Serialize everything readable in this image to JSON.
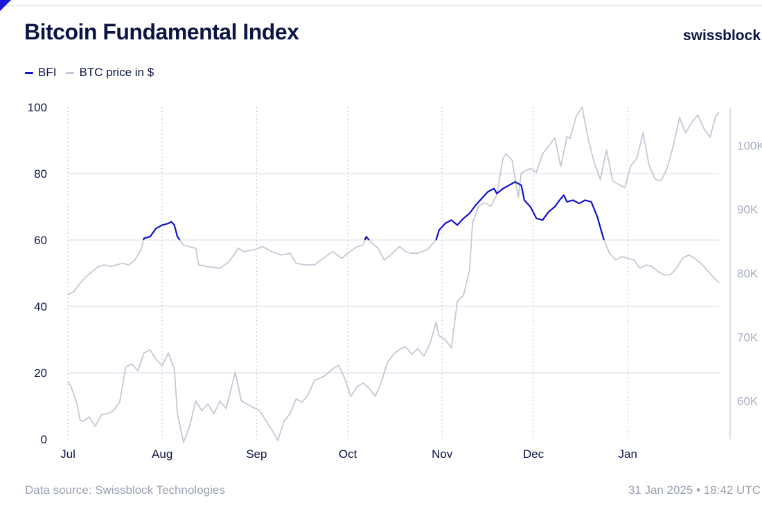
{
  "header": {
    "title": "Bitcoin Fundamental Index",
    "brand": "swissblock"
  },
  "footer": {
    "source": "Data source: Swissblock Technologies",
    "timestamp": "31 Jan 2025 • 18:42 UTC"
  },
  "chart_data": {
    "type": "line",
    "legend_position": "top-left",
    "grid": true,
    "x_tick_labels": [
      "Jul",
      "Aug",
      "Sep",
      "Oct",
      "Nov",
      "Dec",
      "Jan"
    ],
    "x_tick_dates": [
      "2024-07-01",
      "2024-08-01",
      "2024-09-01",
      "2024-10-01",
      "2024-11-01",
      "2024-12-01",
      "2025-01-01"
    ],
    "xlim": [
      "2024-07-01",
      "2025-01-31"
    ],
    "y_left": {
      "lim": [
        0,
        100
      ],
      "ticks": [
        0,
        20,
        40,
        60,
        80,
        100
      ]
    },
    "y_right": {
      "lim": [
        54000,
        106000
      ],
      "ticks": [
        60000,
        70000,
        80000,
        90000,
        100000
      ],
      "tick_labels": [
        "60K",
        "70K",
        "80K",
        "90K",
        "100K"
      ]
    },
    "colors": {
      "bfi": "#1010c8",
      "bfi_low": "#c4c8d6",
      "btc": "#c4c8d6",
      "grid": "#d6d9e6",
      "axis_text": "#0b1442",
      "right_axis_text": "#a6acc2"
    },
    "series": [
      {
        "name": "BFI",
        "axis": "left",
        "highlight_above": 60,
        "points": [
          [
            "2024-07-01",
            43.5
          ],
          [
            "2024-07-03",
            44.5
          ],
          [
            "2024-07-05",
            47
          ],
          [
            "2024-07-07",
            49
          ],
          [
            "2024-07-09",
            50.5
          ],
          [
            "2024-07-11",
            52
          ],
          [
            "2024-07-13",
            52.5
          ],
          [
            "2024-07-15",
            52
          ],
          [
            "2024-07-17",
            52.5
          ],
          [
            "2024-07-19",
            53
          ],
          [
            "2024-07-21",
            52.5
          ],
          [
            "2024-07-23",
            54
          ],
          [
            "2024-07-25",
            57
          ],
          [
            "2024-07-26",
            60.5
          ],
          [
            "2024-07-28",
            61
          ],
          [
            "2024-07-30",
            63.5
          ],
          [
            "2024-08-01",
            64.5
          ],
          [
            "2024-08-03",
            65
          ],
          [
            "2024-08-04",
            65.5
          ],
          [
            "2024-08-05",
            64.5
          ],
          [
            "2024-08-06",
            61
          ],
          [
            "2024-08-08",
            58.5
          ],
          [
            "2024-08-12",
            57.5
          ],
          [
            "2024-08-13",
            52.5
          ],
          [
            "2024-08-16",
            52
          ],
          [
            "2024-08-20",
            51.5
          ],
          [
            "2024-08-23",
            53.5
          ],
          [
            "2024-08-26",
            57.5
          ],
          [
            "2024-08-28",
            56.5
          ],
          [
            "2024-08-31",
            57
          ],
          [
            "2024-09-03",
            58
          ],
          [
            "2024-09-06",
            56.5
          ],
          [
            "2024-09-09",
            55.5
          ],
          [
            "2024-09-12",
            56
          ],
          [
            "2024-09-14",
            53
          ],
          [
            "2024-09-17",
            52.5
          ],
          [
            "2024-09-20",
            52.5
          ],
          [
            "2024-09-23",
            54.5
          ],
          [
            "2024-09-26",
            56.5
          ],
          [
            "2024-09-29",
            54.5
          ],
          [
            "2024-10-01",
            56
          ],
          [
            "2024-10-04",
            58
          ],
          [
            "2024-10-06",
            58.5
          ],
          [
            "2024-10-07",
            61
          ],
          [
            "2024-10-09",
            59
          ],
          [
            "2024-10-11",
            57.5
          ],
          [
            "2024-10-13",
            54
          ],
          [
            "2024-10-15",
            55.5
          ],
          [
            "2024-10-18",
            58
          ],
          [
            "2024-10-20",
            56.5
          ],
          [
            "2024-10-22",
            56
          ],
          [
            "2024-10-24",
            56
          ],
          [
            "2024-10-27",
            57
          ],
          [
            "2024-10-30",
            60
          ],
          [
            "2024-10-31",
            63
          ],
          [
            "2024-11-02",
            65
          ],
          [
            "2024-11-04",
            66
          ],
          [
            "2024-11-06",
            64.5
          ],
          [
            "2024-11-08",
            66.5
          ],
          [
            "2024-11-10",
            68
          ],
          [
            "2024-11-12",
            70.5
          ],
          [
            "2024-11-14",
            72.5
          ],
          [
            "2024-11-16",
            74.5
          ],
          [
            "2024-11-18",
            75.5
          ],
          [
            "2024-11-19",
            74
          ],
          [
            "2024-11-21",
            75.5
          ],
          [
            "2024-11-23",
            76.5
          ],
          [
            "2024-11-25",
            77.5
          ],
          [
            "2024-11-27",
            76.5
          ],
          [
            "2024-11-28",
            72
          ],
          [
            "2024-11-30",
            70
          ],
          [
            "2024-12-02",
            66.5
          ],
          [
            "2024-12-04",
            66
          ],
          [
            "2024-12-06",
            68.5
          ],
          [
            "2024-12-08",
            70
          ],
          [
            "2024-12-10",
            72.5
          ],
          [
            "2024-12-11",
            73.5
          ],
          [
            "2024-12-12",
            71.5
          ],
          [
            "2024-12-14",
            72
          ],
          [
            "2024-12-16",
            71
          ],
          [
            "2024-12-18",
            72
          ],
          [
            "2024-12-20",
            71.5
          ],
          [
            "2024-12-22",
            67
          ],
          [
            "2024-12-24",
            60.5
          ],
          [
            "2024-12-26",
            56
          ],
          [
            "2024-12-28",
            54
          ],
          [
            "2024-12-30",
            55
          ],
          [
            "2025-01-01",
            54.5
          ],
          [
            "2025-01-03",
            54
          ],
          [
            "2025-01-05",
            51.5
          ],
          [
            "2025-01-07",
            52.5
          ],
          [
            "2025-01-09",
            52
          ],
          [
            "2025-01-11",
            50.5
          ],
          [
            "2025-01-13",
            49.5
          ],
          [
            "2025-01-15",
            49.5
          ],
          [
            "2025-01-17",
            51.5
          ],
          [
            "2025-01-19",
            54.5
          ],
          [
            "2025-01-21",
            55.5
          ],
          [
            "2025-01-23",
            54.5
          ],
          [
            "2025-01-25",
            53
          ],
          [
            "2025-01-27",
            51
          ],
          [
            "2025-01-29",
            49
          ],
          [
            "2025-01-31",
            47
          ]
        ]
      },
      {
        "name": "BTC price in $",
        "axis": "right",
        "points": [
          [
            "2024-07-01",
            63000
          ],
          [
            "2024-07-02",
            62300
          ],
          [
            "2024-07-04",
            59500
          ],
          [
            "2024-07-05",
            57000
          ],
          [
            "2024-07-06",
            56800
          ],
          [
            "2024-07-08",
            57500
          ],
          [
            "2024-07-10",
            56000
          ],
          [
            "2024-07-12",
            57800
          ],
          [
            "2024-07-14",
            58000
          ],
          [
            "2024-07-16",
            58500
          ],
          [
            "2024-07-18",
            59800
          ],
          [
            "2024-07-20",
            65300
          ],
          [
            "2024-07-22",
            65800
          ],
          [
            "2024-07-24",
            64700
          ],
          [
            "2024-07-26",
            67500
          ],
          [
            "2024-07-28",
            68000
          ],
          [
            "2024-07-30",
            66500
          ],
          [
            "2024-08-01",
            65500
          ],
          [
            "2024-08-03",
            67500
          ],
          [
            "2024-08-05",
            65000
          ],
          [
            "2024-08-06",
            58000
          ],
          [
            "2024-08-08",
            53500
          ],
          [
            "2024-08-10",
            56000
          ],
          [
            "2024-08-12",
            60000
          ],
          [
            "2024-08-14",
            58500
          ],
          [
            "2024-08-16",
            59500
          ],
          [
            "2024-08-18",
            58000
          ],
          [
            "2024-08-20",
            60000
          ],
          [
            "2024-08-22",
            58800
          ],
          [
            "2024-08-25",
            64500
          ],
          [
            "2024-08-27",
            60000
          ],
          [
            "2024-08-30",
            59200
          ],
          [
            "2024-09-02",
            58500
          ],
          [
            "2024-09-04",
            57000
          ],
          [
            "2024-09-06",
            55500
          ],
          [
            "2024-09-08",
            53800
          ],
          [
            "2024-09-10",
            56800
          ],
          [
            "2024-09-12",
            58000
          ],
          [
            "2024-09-14",
            60300
          ],
          [
            "2024-09-16",
            59800
          ],
          [
            "2024-09-18",
            61000
          ],
          [
            "2024-09-20",
            63200
          ],
          [
            "2024-09-23",
            63800
          ],
          [
            "2024-09-26",
            65000
          ],
          [
            "2024-09-28",
            65600
          ],
          [
            "2024-09-30",
            63500
          ],
          [
            "2024-10-02",
            60700
          ],
          [
            "2024-10-04",
            62200
          ],
          [
            "2024-10-06",
            62800
          ],
          [
            "2024-10-08",
            62000
          ],
          [
            "2024-10-10",
            60700
          ],
          [
            "2024-10-12",
            62900
          ],
          [
            "2024-10-14",
            66000
          ],
          [
            "2024-10-16",
            67300
          ],
          [
            "2024-10-18",
            68100
          ],
          [
            "2024-10-20",
            68500
          ],
          [
            "2024-10-22",
            67300
          ],
          [
            "2024-10-24",
            68200
          ],
          [
            "2024-10-26",
            67000
          ],
          [
            "2024-10-28",
            69000
          ],
          [
            "2024-10-30",
            72300
          ],
          [
            "2024-10-31",
            70200
          ],
          [
            "2024-11-02",
            69600
          ],
          [
            "2024-11-04",
            68300
          ],
          [
            "2024-11-06",
            75600
          ],
          [
            "2024-11-08",
            76500
          ],
          [
            "2024-11-10",
            80500
          ],
          [
            "2024-11-11",
            88000
          ],
          [
            "2024-11-13",
            90500
          ],
          [
            "2024-11-15",
            91000
          ],
          [
            "2024-11-17",
            90500
          ],
          [
            "2024-11-19",
            92300
          ],
          [
            "2024-11-21",
            98000
          ],
          [
            "2024-11-22",
            98700
          ],
          [
            "2024-11-24",
            97700
          ],
          [
            "2024-11-26",
            91900
          ],
          [
            "2024-11-27",
            95700
          ],
          [
            "2024-11-30",
            96400
          ],
          [
            "2024-12-02",
            95800
          ],
          [
            "2024-12-04",
            98700
          ],
          [
            "2024-12-06",
            99900
          ],
          [
            "2024-12-08",
            101200
          ],
          [
            "2024-12-10",
            96700
          ],
          [
            "2024-12-12",
            101400
          ],
          [
            "2024-12-13",
            101100
          ],
          [
            "2024-12-15",
            104500
          ],
          [
            "2024-12-17",
            106000
          ],
          [
            "2024-12-19",
            101000
          ],
          [
            "2024-12-21",
            97300
          ],
          [
            "2024-12-23",
            94700
          ],
          [
            "2024-12-25",
            99300
          ],
          [
            "2024-12-27",
            94500
          ],
          [
            "2024-12-29",
            93900
          ],
          [
            "2024-12-31",
            93400
          ],
          [
            "2025-01-02",
            96800
          ],
          [
            "2025-01-04",
            98000
          ],
          [
            "2025-01-06",
            102000
          ],
          [
            "2025-01-08",
            96900
          ],
          [
            "2025-01-10",
            94700
          ],
          [
            "2025-01-12",
            94500
          ],
          [
            "2025-01-14",
            96500
          ],
          [
            "2025-01-16",
            100000
          ],
          [
            "2025-01-18",
            104400
          ],
          [
            "2025-01-20",
            102000
          ],
          [
            "2025-01-22",
            103600
          ],
          [
            "2025-01-24",
            104800
          ],
          [
            "2025-01-26",
            102700
          ],
          [
            "2025-01-28",
            101300
          ],
          [
            "2025-01-30",
            104700
          ],
          [
            "2025-01-31",
            105200
          ]
        ]
      }
    ]
  }
}
